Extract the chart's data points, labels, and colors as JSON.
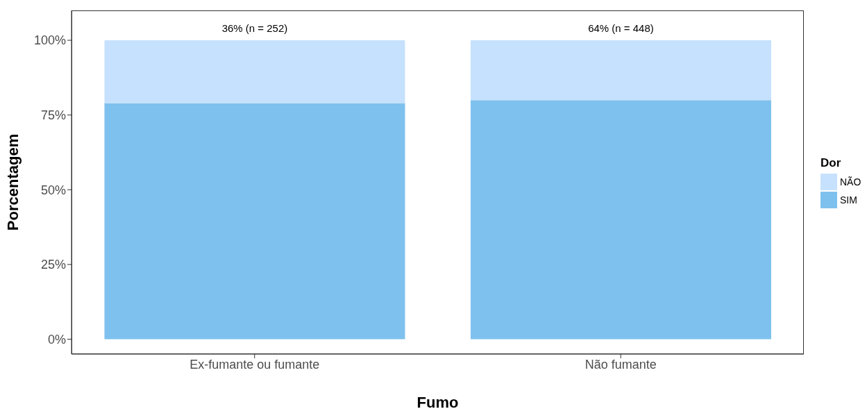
{
  "chart_data": {
    "type": "bar",
    "stacked": true,
    "categories": [
      "Ex-fumante ou fumante",
      "Não fumante"
    ],
    "series": [
      {
        "name": "SIM",
        "color": "#7fc1ee",
        "values": [
          79,
          80
        ]
      },
      {
        "name": "NÃO",
        "color": "#c6e1fd",
        "values": [
          21,
          20
        ]
      }
    ],
    "totals": [
      "36% (n = 252)",
      "64% (n = 448)"
    ],
    "xlabel": "Fumo",
    "ylabel": "Porcentagem",
    "legend_title": "Dor",
    "legend": "right",
    "grid": false,
    "ylim": [
      -5,
      110
    ],
    "yticks": [
      {
        "value": 0,
        "label": "0%"
      },
      {
        "value": 25,
        "label": "25%"
      },
      {
        "value": 50,
        "label": "50%"
      },
      {
        "value": 75,
        "label": "75%"
      },
      {
        "value": 100,
        "label": "100%"
      }
    ]
  }
}
